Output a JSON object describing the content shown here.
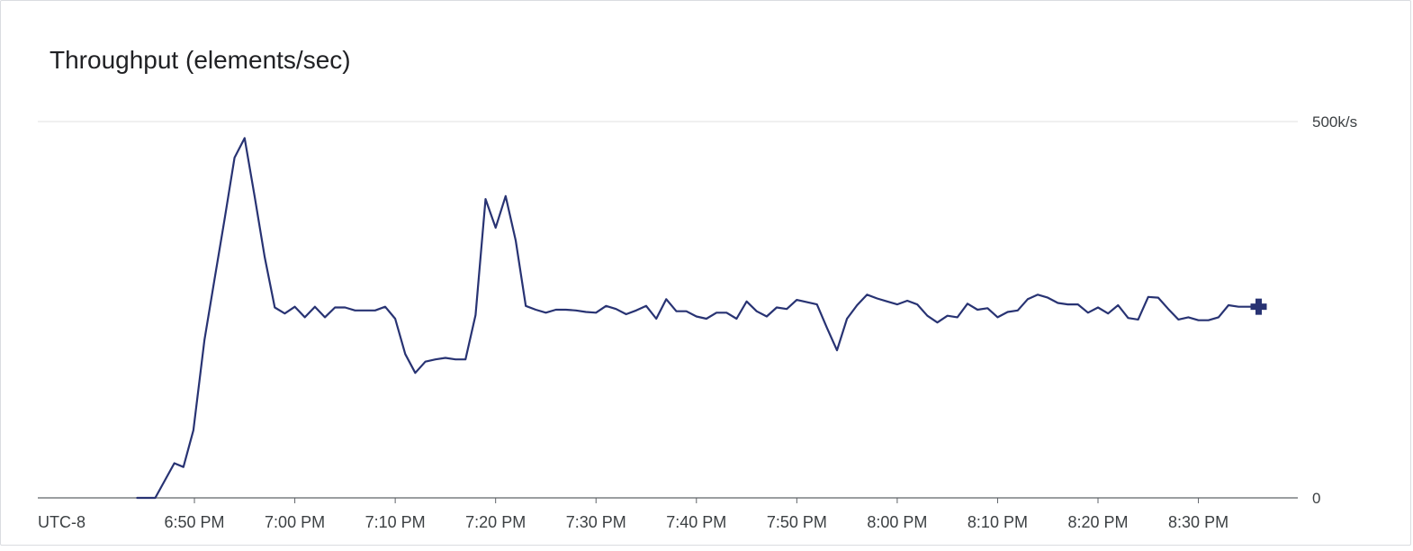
{
  "chart_data": {
    "type": "line",
    "title": "Throughput (elements/sec)",
    "timezone_label": "UTC-8",
    "x_unit": "minutes after 6:50 PM",
    "x_ticks": [
      {
        "x": 0,
        "label": "6:50 PM"
      },
      {
        "x": 10,
        "label": "7:00 PM"
      },
      {
        "x": 20,
        "label": "7:10 PM"
      },
      {
        "x": 30,
        "label": "7:20 PM"
      },
      {
        "x": 40,
        "label": "7:30 PM"
      },
      {
        "x": 50,
        "label": "7:40 PM"
      },
      {
        "x": 60,
        "label": "7:50 PM"
      },
      {
        "x": 70,
        "label": "8:00 PM"
      },
      {
        "x": 80,
        "label": "8:10 PM"
      },
      {
        "x": 90,
        "label": "8:20 PM"
      },
      {
        "x": 100,
        "label": "8:30 PM"
      }
    ],
    "xlim": [
      -15.6,
      109.9
    ],
    "y_ticks": [
      {
        "y": 0,
        "label": "0"
      },
      {
        "y": 500000,
        "label": "500k/s"
      }
    ],
    "ylim": [
      0,
      500000
    ],
    "grid": true,
    "series": [
      {
        "color": "#283373",
        "end_marker": "plus",
        "points": [
          [
            -5.7,
            0
          ],
          [
            -3.9,
            0
          ],
          [
            -2.0,
            46000
          ],
          [
            -1.1,
            41000
          ],
          [
            -0.1,
            90000
          ],
          [
            1.0,
            210000
          ],
          [
            2.0,
            290000
          ],
          [
            3.0,
            370000
          ],
          [
            4.0,
            452000
          ],
          [
            5.0,
            478000
          ],
          [
            6.0,
            400000
          ],
          [
            7.0,
            320000
          ],
          [
            8.0,
            253000
          ],
          [
            9.0,
            245000
          ],
          [
            10.0,
            254000
          ],
          [
            11.0,
            240000
          ],
          [
            12.0,
            254000
          ],
          [
            13.0,
            240000
          ],
          [
            14.0,
            253000
          ],
          [
            15.0,
            253000
          ],
          [
            16.0,
            249000
          ],
          [
            17.0,
            249000
          ],
          [
            18.0,
            249000
          ],
          [
            19.0,
            254000
          ],
          [
            20.0,
            238000
          ],
          [
            21.0,
            191000
          ],
          [
            22.0,
            166000
          ],
          [
            23.0,
            181000
          ],
          [
            24.0,
            184000
          ],
          [
            25.0,
            186000
          ],
          [
            26.0,
            184000
          ],
          [
            27.0,
            184000
          ],
          [
            28.0,
            243000
          ],
          [
            29.0,
            397000
          ],
          [
            30.0,
            359000
          ],
          [
            31.0,
            401000
          ],
          [
            32.0,
            342000
          ],
          [
            33.0,
            255000
          ],
          [
            34.0,
            250000
          ],
          [
            35.0,
            246000
          ],
          [
            36.0,
            250000
          ],
          [
            37.0,
            250000
          ],
          [
            38.0,
            249000
          ],
          [
            39.0,
            247000
          ],
          [
            40.0,
            246000
          ],
          [
            41.0,
            255000
          ],
          [
            42.0,
            251000
          ],
          [
            43.0,
            244000
          ],
          [
            44.0,
            249000
          ],
          [
            45.0,
            255000
          ],
          [
            46.0,
            238000
          ],
          [
            47.0,
            264000
          ],
          [
            48.0,
            248000
          ],
          [
            49.0,
            248000
          ],
          [
            50.0,
            241000
          ],
          [
            51.0,
            238000
          ],
          [
            52.0,
            246000
          ],
          [
            53.0,
            246000
          ],
          [
            54.0,
            238000
          ],
          [
            55.0,
            261000
          ],
          [
            56.0,
            248000
          ],
          [
            57.0,
            241000
          ],
          [
            58.0,
            253000
          ],
          [
            59.0,
            251000
          ],
          [
            60.0,
            263000
          ],
          [
            61.0,
            260000
          ],
          [
            62.0,
            257000
          ],
          [
            63.0,
            226000
          ],
          [
            64.0,
            196000
          ],
          [
            65.0,
            238000
          ],
          [
            66.0,
            256000
          ],
          [
            67.0,
            270000
          ],
          [
            68.0,
            265000
          ],
          [
            69.0,
            261000
          ],
          [
            70.0,
            257000
          ],
          [
            71.0,
            262000
          ],
          [
            72.0,
            257000
          ],
          [
            73.0,
            242000
          ],
          [
            74.0,
            233000
          ],
          [
            75.0,
            242000
          ],
          [
            76.0,
            240000
          ],
          [
            77.0,
            258000
          ],
          [
            78.0,
            250000
          ],
          [
            79.0,
            252000
          ],
          [
            80.0,
            240000
          ],
          [
            81.0,
            247000
          ],
          [
            82.0,
            249000
          ],
          [
            83.0,
            264000
          ],
          [
            84.0,
            270000
          ],
          [
            85.0,
            266000
          ],
          [
            86.0,
            259000
          ],
          [
            87.0,
            257000
          ],
          [
            88.0,
            257000
          ],
          [
            89.0,
            246000
          ],
          [
            90.0,
            253000
          ],
          [
            91.0,
            245000
          ],
          [
            92.0,
            256000
          ],
          [
            93.0,
            239000
          ],
          [
            94.0,
            237000
          ],
          [
            95.0,
            267000
          ],
          [
            96.0,
            266000
          ],
          [
            97.0,
            251000
          ],
          [
            98.0,
            237000
          ],
          [
            99.0,
            240000
          ],
          [
            100.0,
            236000
          ],
          [
            101.0,
            236000
          ],
          [
            102.0,
            240000
          ],
          [
            103.0,
            256000
          ],
          [
            104.0,
            254000
          ],
          [
            105.0,
            254000
          ],
          [
            106.0,
            254000
          ]
        ]
      }
    ]
  },
  "colors": {
    "line": "#283373",
    "grid": "#e0e0e0",
    "axis": "#5f6368",
    "text": "#3c4043"
  }
}
